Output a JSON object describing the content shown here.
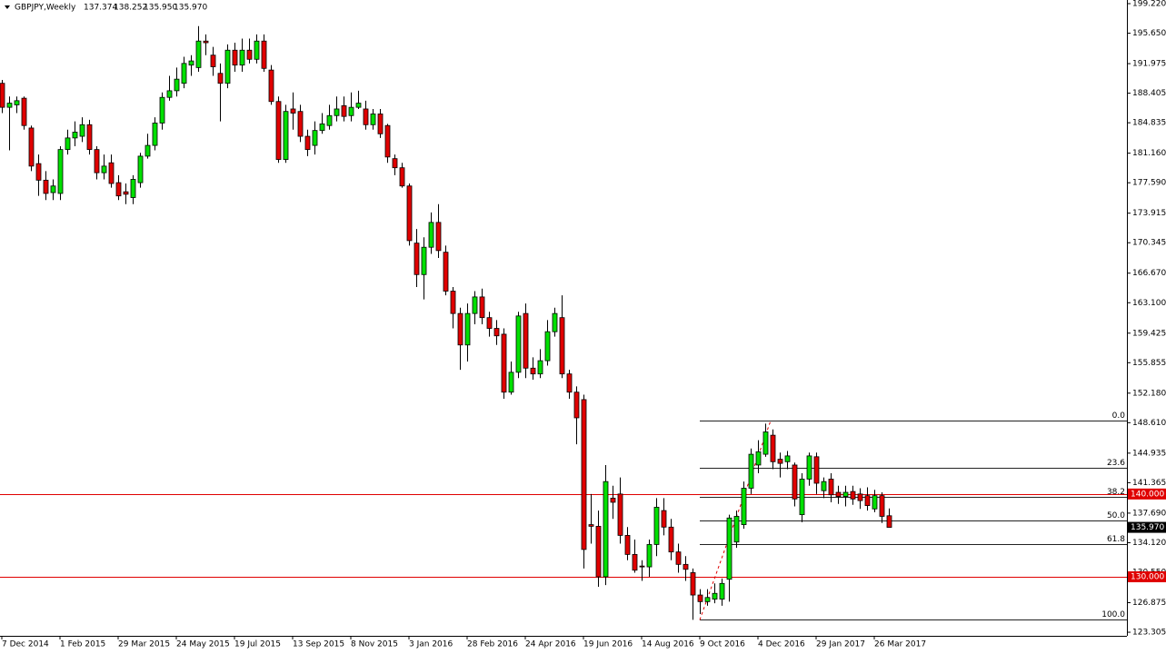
{
  "chart_data": {
    "type": "candlestick",
    "title": "GBPJPY,Weekly",
    "header_values": [
      137.374,
      138.252,
      135.95,
      135.97
    ],
    "header_value_labels": [
      "137.374",
      "138.252",
      "135.950",
      "135.970"
    ],
    "up_color": "#00e000",
    "down_color": "#e00000",
    "open": [
      189.6,
      186.7,
      187.0,
      187.8,
      184.2,
      179.9,
      177.9,
      176.4,
      176.3,
      181.6,
      183.0,
      183.2,
      184.6,
      181.6,
      178.8,
      180.0,
      177.6,
      176.5,
      175.8,
      177.6,
      180.8,
      182.1,
      184.8,
      187.9,
      188.7,
      189.6,
      191.8,
      191.5,
      194.7,
      193.0,
      190.8,
      189.6,
      193.6,
      191.8,
      193.6,
      192.5,
      194.7,
      191.2,
      187.4,
      180.4,
      186.5,
      186.2,
      183.2,
      182.1,
      183.9,
      184.5,
      185.7,
      186.9,
      185.7,
      186.7,
      186.5,
      184.6,
      185.9,
      184.5,
      180.5,
      179.4,
      177.2,
      170.3,
      166.5,
      169.8,
      172.8,
      169.2,
      164.5,
      161.8,
      158.0,
      161.8,
      163.8,
      161.3,
      160.0,
      159.3,
      152.3,
      154.7,
      161.8,
      155.2,
      154.5,
      156.1,
      159.6,
      161.3,
      154.5,
      152.3,
      151.4,
      136.3,
      136.1,
      130.0,
      139.5,
      140.0,
      135.0,
      132.7,
      131.3,
      131.2,
      133.9,
      138.0,
      136.0,
      133.0,
      131.5,
      130.5,
      127.8,
      127.0,
      127.3,
      127.3,
      129.7,
      134.2,
      136.3,
      140.7,
      143.5,
      144.8,
      147.1,
      144.2,
      143.9,
      143.5,
      137.5,
      141.8,
      144.5,
      140.4,
      141.8,
      140.2,
      139.7,
      140.3,
      140.0,
      139.8,
      138.2,
      139.8,
      137.374
    ],
    "high": [
      190,
      188,
      188,
      188,
      184.5,
      181,
      179,
      178,
      182,
      184,
      185,
      185.5,
      185.2,
      182,
      181,
      181,
      178.5,
      177.5,
      178.5,
      181.2,
      183.5,
      185.5,
      188.5,
      190.5,
      191.5,
      192.8,
      193,
      196.5,
      195.5,
      194,
      192,
      194.3,
      194.5,
      195,
      195,
      195.5,
      195.5,
      191.8,
      188,
      187,
      188.5,
      187,
      184,
      185,
      186,
      187,
      188,
      188,
      188.5,
      188.7,
      187.5,
      186.5,
      186.5,
      184.7,
      181,
      180,
      177.5,
      172,
      171,
      174,
      175,
      170,
      165,
      162.5,
      163,
      164.5,
      164.8,
      162,
      161,
      160,
      156,
      162,
      163,
      156.5,
      157.5,
      161,
      162.5,
      164,
      155,
      153,
      152,
      140,
      138,
      143.5,
      141,
      142,
      136,
      134.5,
      132,
      134.5,
      139.5,
      139.5,
      137,
      134,
      132.5,
      131,
      128.5,
      128.5,
      129.2,
      129.8,
      137.5,
      138,
      141.5,
      145.5,
      146.5,
      148.5,
      147.8,
      145,
      145.2,
      143.8,
      142.5,
      145,
      145,
      142,
      142.5,
      141,
      141,
      141,
      140.7,
      140.8,
      140.5,
      140.2,
      138.252
    ],
    "low": [
      186,
      181.5,
      186,
      184,
      179,
      176,
      175.5,
      175.5,
      175.5,
      181,
      182,
      182.5,
      181,
      178,
      178,
      177,
      175.5,
      175,
      175,
      177,
      180.5,
      181.5,
      184,
      187.5,
      188,
      189,
      190.5,
      191,
      193,
      190.5,
      185,
      189,
      191,
      191,
      192,
      192,
      191,
      187,
      180,
      180,
      184,
      182.5,
      180.8,
      181,
      183.5,
      184,
      185,
      185,
      185,
      186.5,
      184,
      184,
      183,
      180,
      178.5,
      177,
      170,
      165,
      163.5,
      169,
      168.5,
      164,
      160,
      155,
      156,
      160.5,
      160.5,
      159,
      158,
      151.5,
      152,
      154,
      154,
      153.8,
      154,
      155.5,
      159,
      154,
      151.5,
      146,
      131,
      134,
      128.8,
      129,
      137,
      134,
      132,
      130.5,
      129.5,
      130,
      132.5,
      135,
      132,
      130.5,
      129.5,
      124.8,
      125.5,
      126.5,
      126.8,
      126.5,
      127,
      133.5,
      135.8,
      140,
      142.5,
      144.5,
      143,
      142,
      143,
      138.5,
      136.6,
      141,
      140,
      139.5,
      139,
      138.8,
      138.5,
      138.7,
      138.2,
      138,
      137.8,
      136.5,
      135.95
    ],
    "close": [
      186.7,
      187.2,
      187.5,
      184.5,
      179.6,
      177.9,
      176.3,
      177.2,
      181.6,
      183.0,
      183.7,
      184.6,
      181.6,
      178.8,
      179.6,
      177.5,
      176.0,
      176.2,
      178.0,
      180.8,
      182.1,
      184.8,
      187.9,
      188.7,
      190.1,
      192.0,
      192.3,
      194.7,
      194.5,
      191.6,
      189.6,
      193.6,
      191.8,
      193.6,
      192.5,
      194.7,
      191.4,
      187.4,
      180.4,
      186.2,
      186.0,
      183.2,
      181.6,
      183.9,
      184.7,
      185.7,
      186.5,
      185.6,
      186.7,
      187.2,
      184.6,
      185.9,
      183.5,
      180.7,
      179.4,
      177.2,
      170.6,
      166.5,
      169.8,
      172.8,
      169.4,
      164.5,
      161.8,
      158.0,
      161.8,
      163.8,
      161.3,
      160.0,
      159.1,
      152.3,
      154.7,
      161.5,
      155.2,
      154.5,
      156.1,
      159.6,
      161.8,
      154.5,
      152.3,
      149.2,
      133.3,
      136.1,
      130.0,
      141.5,
      139.0,
      135.0,
      132.7,
      130.8,
      131.2,
      133.9,
      138.4,
      136.0,
      133.0,
      131.5,
      130.9,
      127.8,
      127.0,
      127.5,
      128.0,
      129.2,
      137.1,
      137.3,
      140.7,
      144.8,
      145.1,
      147.5,
      143.9,
      143.7,
      144.6,
      139.4,
      141.8,
      144.6,
      141.3,
      141.5,
      139.9,
      139.7,
      140.2,
      139.4,
      139.2,
      138.6,
      139.8,
      137.3,
      135.97
    ],
    "xlim": [
      -0.25,
      154.75
    ],
    "xticks": [
      {
        "value": 0,
        "label": "7 Dec 2014"
      },
      {
        "value": 8,
        "label": "1 Feb 2015"
      },
      {
        "value": 16,
        "label": "29 Mar 2015"
      },
      {
        "value": 24,
        "label": "24 May 2015"
      },
      {
        "value": 32,
        "label": "19 Jul 2015"
      },
      {
        "value": 40,
        "label": "13 Sep 2015"
      },
      {
        "value": 48,
        "label": "8 Nov 2015"
      },
      {
        "value": 56,
        "label": "3 Jan 2016"
      },
      {
        "value": 64,
        "label": "28 Feb 2016"
      },
      {
        "value": 72,
        "label": "24 Apr 2016"
      },
      {
        "value": 80,
        "label": "19 Jun 2016"
      },
      {
        "value": 88,
        "label": "14 Aug 2016"
      },
      {
        "value": 96,
        "label": "9 Oct 2016"
      },
      {
        "value": 104,
        "label": "4 Dec 2016"
      },
      {
        "value": 112,
        "label": "29 Jan 2017"
      },
      {
        "value": 120,
        "label": "26 Mar 2017"
      }
    ],
    "ylim": [
      122.87,
      199.66
    ],
    "yticks": [
      {
        "value": 199.22,
        "label": "199.220"
      },
      {
        "value": 195.65,
        "label": "195.650"
      },
      {
        "value": 191.975,
        "label": "191.975"
      },
      {
        "value": 188.405,
        "label": "188.405"
      },
      {
        "value": 184.835,
        "label": "184.835"
      },
      {
        "value": 181.16,
        "label": "181.160"
      },
      {
        "value": 177.59,
        "label": "177.590"
      },
      {
        "value": 173.915,
        "label": "173.915"
      },
      {
        "value": 170.345,
        "label": "170.345"
      },
      {
        "value": 166.67,
        "label": "166.670"
      },
      {
        "value": 163.1,
        "label": "163.100"
      },
      {
        "value": 159.425,
        "label": "159.425"
      },
      {
        "value": 155.855,
        "label": "155.855"
      },
      {
        "value": 152.18,
        "label": "152.180"
      },
      {
        "value": 148.61,
        "label": "148.610"
      },
      {
        "value": 144.935,
        "label": "144.935"
      },
      {
        "value": 141.365,
        "label": "141.365"
      },
      {
        "value": 137.69,
        "label": "137.690"
      },
      {
        "value": 134.12,
        "label": "134.120"
      },
      {
        "value": 130.55,
        "label": "130.550"
      },
      {
        "value": 126.875,
        "label": "126.875"
      },
      {
        "value": 123.305,
        "label": "123.305"
      }
    ],
    "hlines": [
      {
        "value": 140,
        "label": "140.000"
      },
      {
        "value": 130,
        "label": "130.000"
      }
    ],
    "hline_color": "#e00000",
    "last_price": {
      "value": 135.97,
      "label": "135.970"
    },
    "fibonacci": {
      "x_from": 96,
      "levels": [
        {
          "value": 148.85,
          "label": "0.0"
        },
        {
          "value": 143.17,
          "label": "23.6"
        },
        {
          "value": 139.66,
          "label": "38.2"
        },
        {
          "value": 136.83,
          "label": "50.0"
        },
        {
          "value": 133.99,
          "label": "61.8"
        },
        {
          "value": 124.8,
          "label": "100.0"
        }
      ]
    },
    "trendline": {
      "x": [
        96,
        105.75
      ],
      "y": [
        124.8,
        148.85
      ],
      "color": "#e00000"
    }
  }
}
